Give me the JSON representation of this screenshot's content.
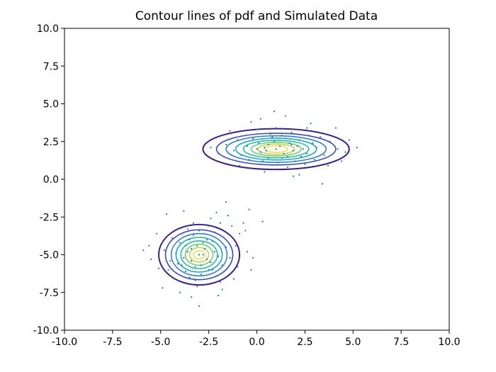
{
  "chart_data": {
    "type": "scatter",
    "title": "Contour lines of pdf and Simulated Data",
    "xlabel": "",
    "ylabel": "",
    "xlim": [
      -10,
      10
    ],
    "ylim": [
      -10,
      10
    ],
    "xticks": [
      "-10.0",
      "-7.5",
      "-5.0",
      "-2.5",
      "0.0",
      "2.5",
      "5.0",
      "7.5",
      "10.0"
    ],
    "yticks": [
      "10.0",
      "7.5",
      "5.0",
      "2.5",
      "0.0",
      "-2.5",
      "-5.0",
      "-7.5",
      "-10.0"
    ],
    "grid": false,
    "point_color": "#1f77b4",
    "contour_colors": [
      "#3b1f8f",
      "#3949c9",
      "#2c7fe0",
      "#1eaac8",
      "#24c09a",
      "#6fd06a",
      "#b8d858",
      "#f2dd4a"
    ],
    "clusters": [
      {
        "center": [
          1.0,
          2.0
        ],
        "sd": [
          1.3,
          0.6
        ],
        "contour_radii": [
          [
            3.8,
            1.35
          ],
          [
            3.1,
            1.05
          ],
          [
            2.6,
            0.88
          ],
          [
            2.1,
            0.72
          ],
          [
            1.7,
            0.58
          ],
          [
            1.3,
            0.45
          ],
          [
            0.95,
            0.34
          ],
          [
            0.6,
            0.22
          ]
        ]
      },
      {
        "center": [
          -3.0,
          -5.0
        ],
        "sd": [
          0.85,
          0.85
        ],
        "contour_radii": [
          [
            2.1,
            2.0
          ],
          [
            1.75,
            1.65
          ],
          [
            1.45,
            1.4
          ],
          [
            1.2,
            1.15
          ],
          [
            0.95,
            0.92
          ],
          [
            0.72,
            0.7
          ],
          [
            0.5,
            0.48
          ],
          [
            0.3,
            0.28
          ]
        ]
      }
    ],
    "points": [
      [
        1.0,
        2.0
      ],
      [
        0.2,
        1.8
      ],
      [
        1.8,
        2.3
      ],
      [
        -0.5,
        2.2
      ],
      [
        2.6,
        1.7
      ],
      [
        1.3,
        2.9
      ],
      [
        0.6,
        1.4
      ],
      [
        2.2,
        2.6
      ],
      [
        -1.2,
        1.9
      ],
      [
        3.1,
        2.1
      ],
      [
        0.9,
        2.5
      ],
      [
        1.6,
        1.5
      ],
      [
        -0.2,
        2.7
      ],
      [
        2.9,
        2.4
      ],
      [
        0.4,
        2.1
      ],
      [
        1.9,
        1.9
      ],
      [
        -1.6,
        2.3
      ],
      [
        3.5,
        1.6
      ],
      [
        1.1,
        1.1
      ],
      [
        0.7,
        3.0
      ],
      [
        2.4,
        2.0
      ],
      [
        -0.8,
        1.6
      ],
      [
        1.5,
        2.7
      ],
      [
        0.1,
        2.4
      ],
      [
        2.0,
        1.2
      ],
      [
        3.8,
        2.5
      ],
      [
        -2.0,
        1.7
      ],
      [
        1.2,
        2.2
      ],
      [
        0.5,
        1.9
      ],
      [
        2.7,
        2.9
      ],
      [
        1.7,
        2.4
      ],
      [
        -0.4,
        1.3
      ],
      [
        0.8,
        2.8
      ],
      [
        2.3,
        1.5
      ],
      [
        4.2,
        2.0
      ],
      [
        -1.0,
        2.6
      ],
      [
        1.4,
        1.7
      ],
      [
        0.0,
        2.0
      ],
      [
        3.3,
        2.8
      ],
      [
        1.0,
        3.4
      ],
      [
        0.3,
        1.2
      ],
      [
        2.1,
        2.2
      ],
      [
        -2.4,
        2.1
      ],
      [
        4.6,
        1.8
      ],
      [
        1.8,
        3.1
      ],
      [
        0.6,
        2.3
      ],
      [
        2.5,
        1.0
      ],
      [
        -0.6,
        2.9
      ],
      [
        1.3,
        1.4
      ],
      [
        3.0,
        1.3
      ],
      [
        0.9,
        4.5
      ],
      [
        1.5,
        4.2
      ],
      [
        0.2,
        4.0
      ],
      [
        2.8,
        3.7
      ],
      [
        -0.3,
        3.8
      ],
      [
        3.4,
        -0.3
      ],
      [
        4.1,
        3.4
      ],
      [
        5.2,
        2.1
      ],
      [
        4.8,
        2.6
      ],
      [
        -2.5,
        2.5
      ],
      [
        2.2,
        0.3
      ],
      [
        0.4,
        0.5
      ],
      [
        1.9,
        0.2
      ],
      [
        4.4,
        1.2
      ],
      [
        -1.4,
        3.2
      ],
      [
        3.7,
        0.9
      ],
      [
        2.6,
        3.4
      ],
      [
        0.0,
        3.3
      ],
      [
        1.6,
        0.8
      ],
      [
        -0.9,
        0.9
      ],
      [
        -3.0,
        -5.0
      ],
      [
        -3.4,
        -4.6
      ],
      [
        -2.6,
        -5.3
      ],
      [
        -3.2,
        -5.8
      ],
      [
        -2.8,
        -4.2
      ],
      [
        -3.8,
        -5.2
      ],
      [
        -2.2,
        -4.8
      ],
      [
        -3.5,
        -4.0
      ],
      [
        -2.5,
        -6.0
      ],
      [
        -3.9,
        -5.7
      ],
      [
        -3.1,
        -4.4
      ],
      [
        -2.4,
        -5.5
      ],
      [
        -3.6,
        -4.8
      ],
      [
        -2.9,
        -6.3
      ],
      [
        -2.0,
        -5.1
      ],
      [
        -4.2,
        -4.9
      ],
      [
        -3.3,
        -3.7
      ],
      [
        -2.7,
        -4.6
      ],
      [
        -3.7,
        -6.1
      ],
      [
        -2.3,
        -4.1
      ],
      [
        -4.5,
        -5.4
      ],
      [
        -1.8,
        -5.7
      ],
      [
        -3.0,
        -3.4
      ],
      [
        -3.2,
        -6.7
      ],
      [
        -4.0,
        -4.2
      ],
      [
        -2.1,
        -6.4
      ],
      [
        -4.6,
        -6.0
      ],
      [
        -1.6,
        -4.5
      ],
      [
        -3.4,
        -5.4
      ],
      [
        -2.8,
        -5.0
      ],
      [
        -3.6,
        -3.3
      ],
      [
        -2.5,
        -3.1
      ],
      [
        -4.8,
        -4.7
      ],
      [
        -1.4,
        -5.2
      ],
      [
        -3.1,
        -7.1
      ],
      [
        -2.2,
        -3.5
      ],
      [
        -4.3,
        -6.6
      ],
      [
        -1.9,
        -6.8
      ],
      [
        -5.1,
        -5.9
      ],
      [
        -3.9,
        -3.6
      ],
      [
        -4.7,
        -2.3
      ],
      [
        -3.8,
        -2.1
      ],
      [
        -2.4,
        -2.6
      ],
      [
        -1.5,
        -2.4
      ],
      [
        -1.3,
        -3.1
      ],
      [
        -0.9,
        -3.6
      ],
      [
        -1.1,
        -4.4
      ],
      [
        -0.4,
        -2.0
      ],
      [
        -0.6,
        -3.4
      ],
      [
        -1.0,
        -5.8
      ],
      [
        -0.2,
        -5.2
      ],
      [
        -1.2,
        -6.6
      ],
      [
        -2.0,
        -7.7
      ],
      [
        -3.4,
        -7.8
      ],
      [
        -4.9,
        -7.2
      ],
      [
        -3.0,
        -8.4
      ],
      [
        -5.9,
        -4.7
      ],
      [
        -5.5,
        -5.3
      ],
      [
        -5.6,
        -4.4
      ],
      [
        -1.9,
        -2.9
      ],
      [
        -2.9,
        -5.7
      ],
      [
        -3.5,
        -6.5
      ],
      [
        -2.6,
        -4.0
      ],
      [
        -4.1,
        -5.6
      ],
      [
        -2.3,
        -6.0
      ],
      [
        -3.7,
        -4.4
      ],
      [
        -1.7,
        -6.1
      ],
      [
        -4.4,
        -3.9
      ],
      [
        -2.7,
        -7.0
      ],
      [
        -0.3,
        -6.0
      ],
      [
        -1.6,
        -1.5
      ],
      [
        -0.7,
        -2.9
      ],
      [
        0.3,
        -2.8
      ],
      [
        -0.5,
        -4.8
      ],
      [
        -1.8,
        -7.3
      ],
      [
        -4.0,
        -7.5
      ],
      [
        -5.2,
        -3.6
      ],
      [
        -4.9,
        -4.2
      ],
      [
        -2.1,
        -2.2
      ],
      [
        -3.3,
        -2.9
      ]
    ]
  }
}
